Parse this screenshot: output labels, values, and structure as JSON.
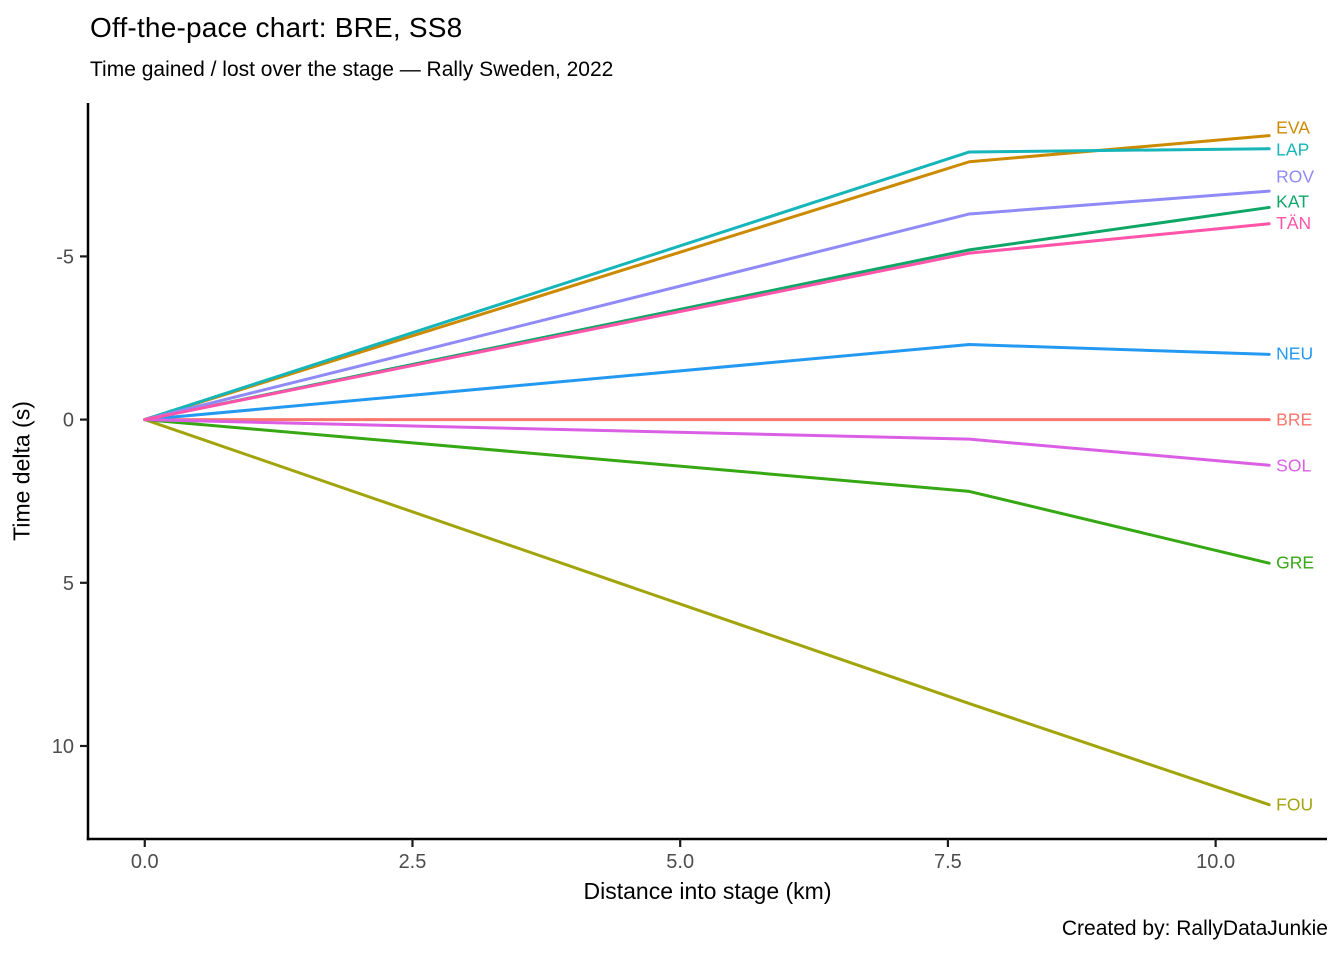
{
  "header": {
    "title": "Off-the-pace chart: BRE, SS8",
    "subtitle": "Time gained / lost over the stage — Rally Sweden, 2022"
  },
  "caption": "Created by: RallyDataJunkie",
  "chart_data": {
    "type": "line",
    "title": "Off-the-pace chart: BRE, SS8",
    "subtitle": "Time gained / lost over the stage — Rally Sweden, 2022",
    "xlabel": "Distance into stage (km)",
    "ylabel": "Time delta (s)",
    "caption": "Created by: RallyDataJunkie",
    "grid": false,
    "legend_position": "direct-labels-right",
    "y_axis_inverted": true,
    "x_range": [
      -0.53,
      11.04
    ],
    "y_range": [
      -9.7,
      12.85
    ],
    "x_ticks": [
      0.0,
      2.5,
      5.0,
      7.5,
      10.0
    ],
    "x_tick_labels": [
      "0.0",
      "2.5",
      "5.0",
      "7.5",
      "10.0"
    ],
    "y_ticks": [
      -5,
      0,
      5,
      10
    ],
    "y_tick_labels": [
      "-5",
      "0",
      "5",
      "10"
    ],
    "x": [
      0,
      7.7,
      10.5
    ],
    "series": [
      {
        "name": "BRE",
        "color": "#F8766D",
        "values": [
          0,
          0,
          0
        ],
        "label_value": 0
      },
      {
        "name": "EVA",
        "color": "#CC8A00",
        "values": [
          0,
          -7.9,
          -8.7
        ],
        "label_value": -8.95
      },
      {
        "name": "FOU",
        "color": "#A2A40C",
        "values": [
          0,
          8.7,
          11.8
        ],
        "label_value": 11.8
      },
      {
        "name": "GRE",
        "color": "#35A813",
        "values": [
          0,
          2.2,
          4.4
        ],
        "label_value": 4.38
      },
      {
        "name": "KAT",
        "color": "#0FA767",
        "values": [
          0,
          -5.2,
          -6.5
        ],
        "label_value": -6.68
      },
      {
        "name": "LAP",
        "color": "#16B5B9",
        "values": [
          0,
          -8.2,
          -8.3
        ],
        "label_value": -8.28
      },
      {
        "name": "NEU",
        "color": "#2499F2",
        "values": [
          0,
          -2.3,
          -2.0
        ],
        "label_value": -2.02
      },
      {
        "name": "ROV",
        "color": "#8F8AF8",
        "values": [
          0,
          -6.3,
          -7.0
        ],
        "label_value": -7.45
      },
      {
        "name": "SOL",
        "color": "#DB5FE5",
        "values": [
          0,
          0.6,
          1.4
        ],
        "label_value": 1.41
      },
      {
        "name": "TÄN",
        "color": "#FF54A9",
        "values": [
          0,
          -5.1,
          -6.0
        ],
        "label_value": -6.02
      }
    ]
  }
}
